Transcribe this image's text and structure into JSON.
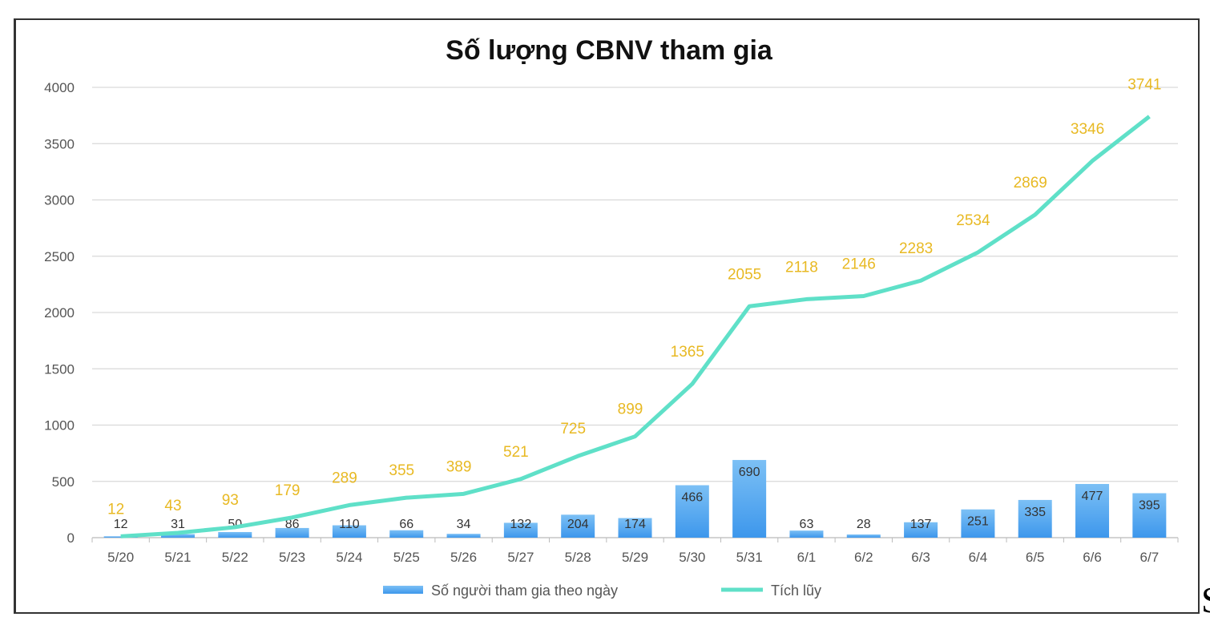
{
  "chart_data": {
    "type": "bar+line",
    "title": "Số lượng CBNV tham gia",
    "categories": [
      "5/20",
      "5/21",
      "5/22",
      "5/23",
      "5/24",
      "5/25",
      "5/26",
      "5/27",
      "5/28",
      "5/29",
      "5/30",
      "5/31",
      "6/1",
      "6/2",
      "6/3",
      "6/4",
      "6/5",
      "6/6",
      "6/7"
    ],
    "series": [
      {
        "name": "Số người tham gia theo ngày",
        "kind": "bar",
        "color": "#4da3ee",
        "values": [
          12,
          31,
          50,
          86,
          110,
          66,
          34,
          132,
          204,
          174,
          466,
          690,
          63,
          28,
          137,
          251,
          335,
          477,
          395
        ]
      },
      {
        "name": "Tích lũy",
        "kind": "line",
        "color": "#5fe0c8",
        "label_color": "#e8b923",
        "values": [
          12,
          43,
          93,
          179,
          289,
          355,
          389,
          521,
          725,
          899,
          1365,
          2055,
          2118,
          2146,
          2283,
          2534,
          2869,
          3346,
          3741
        ]
      }
    ],
    "yticks": [
      "0",
      "500",
      "1000",
      "1500",
      "2000",
      "2500",
      "3000",
      "3500",
      "4000"
    ],
    "ylim": [
      0,
      4000
    ],
    "grid": true,
    "legend": "bottom"
  },
  "edge_fragment": "S"
}
